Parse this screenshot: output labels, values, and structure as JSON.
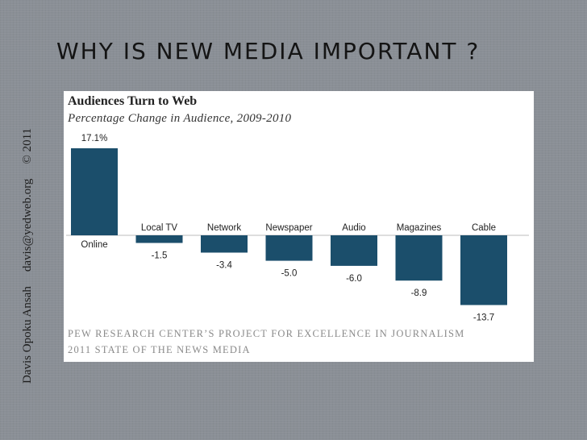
{
  "sidebar": {
    "author": "Davis Opoku Ansah",
    "email": "davis@yedweb.org",
    "copyright": "© 2011"
  },
  "slide_title": "WHY IS NEW MEDIA IMPORTANT ?",
  "chart_data": {
    "type": "bar",
    "title": "Audiences Turn to Web",
    "subtitle": "Percentage Change in Audience, 2009-2010",
    "categories": [
      "Online",
      "Local TV",
      "Network",
      "Newspaper",
      "Audio",
      "Magazines",
      "Cable"
    ],
    "values": [
      17.1,
      -1.5,
      -3.4,
      -5.0,
      -6.0,
      -8.9,
      -13.7
    ],
    "value_labels": [
      "17.1%",
      "-1.5",
      "-3.4",
      "-5.0",
      "-6.0",
      "-8.9",
      "-13.7"
    ],
    "ylim": [
      -15,
      18
    ],
    "xlabel": "",
    "ylabel": "",
    "bar_color": "#1b4e6b",
    "source_lines": [
      "PEW RESEARCH CENTER’S PROJECT FOR EXCELLENCE IN JOURNALISM",
      "2011 STATE OF THE NEWS MEDIA"
    ]
  }
}
